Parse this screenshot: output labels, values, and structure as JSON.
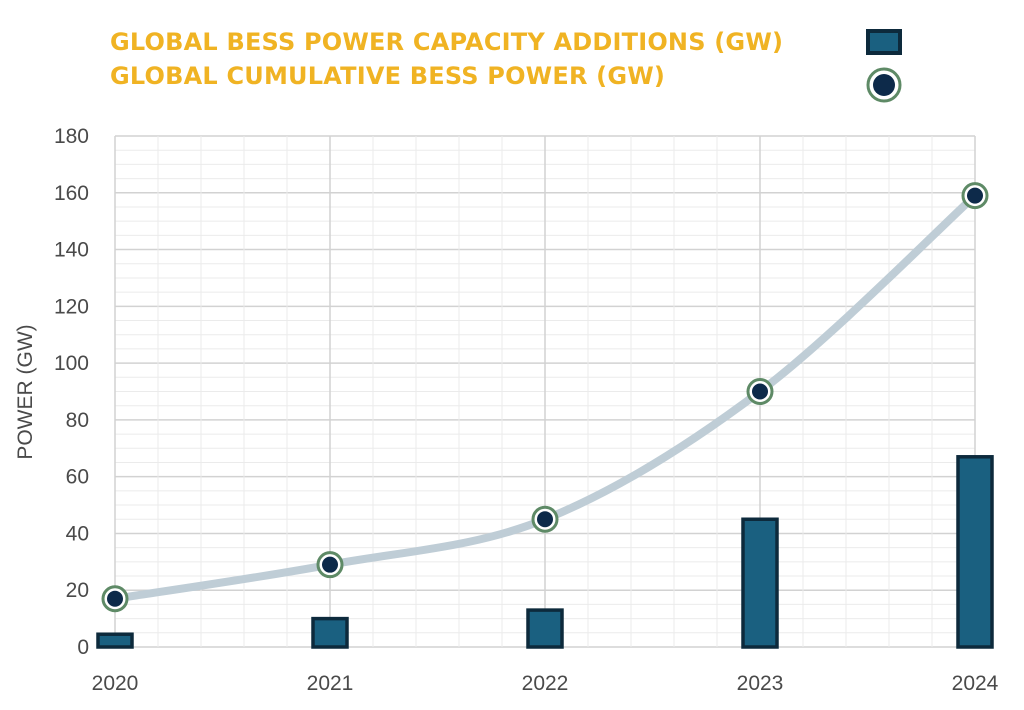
{
  "chart_data": {
    "type": "bar",
    "title": "",
    "xlabel": "",
    "ylabel": "POWER (GW)",
    "ylim": [
      0,
      180
    ],
    "yticks": [
      0,
      20,
      40,
      60,
      80,
      100,
      120,
      140,
      160,
      180
    ],
    "categories": [
      "2020",
      "2021",
      "2022",
      "2023",
      "2024"
    ],
    "grid": true,
    "legend": "top",
    "series": [
      {
        "name": "GLOBAL BESS POWER CAPACITY ADDITIONS (GW)",
        "type": "bar",
        "color": "#1A6080",
        "edge_color": "#0D2A3C",
        "values": [
          4.5,
          10,
          13,
          45,
          67
        ]
      },
      {
        "name": "GLOBAL CUMULATIVE BESS POWER (GW)",
        "type": "line",
        "color": "#0D2A4A",
        "ring_color": "#5E8A66",
        "line_color": "#BFCDD6",
        "values": [
          17,
          29,
          45,
          90,
          159
        ]
      }
    ]
  }
}
